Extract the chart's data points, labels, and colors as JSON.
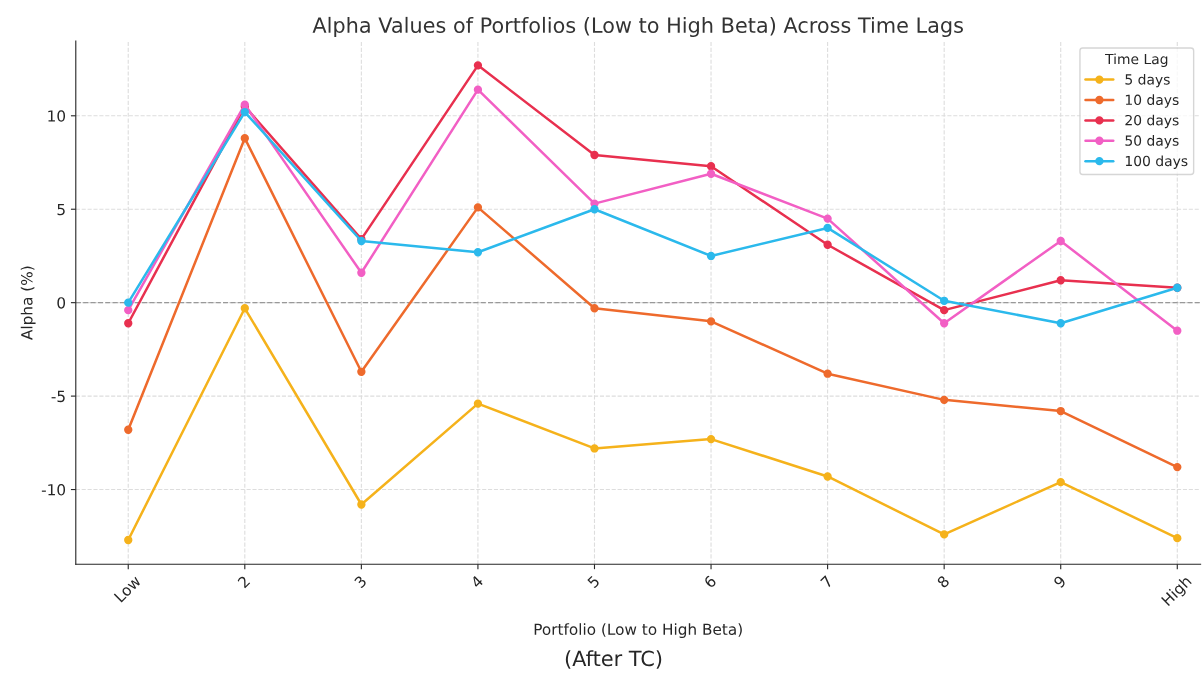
{
  "chart_data": {
    "type": "line",
    "title": "Alpha Values of Portfolios (Low to High Beta) Across Time Lags",
    "xlabel": "Portfolio (Low to High Beta)",
    "ylabel": "Alpha (%)",
    "legend_title": "Time Lag",
    "categories": [
      "Low",
      "2",
      "3",
      "4",
      "5",
      "6",
      "7",
      "8",
      "9",
      "High"
    ],
    "series": [
      {
        "name": "5 days",
        "color": "#f5b21b",
        "values": [
          -12.7,
          -0.3,
          -10.8,
          -5.4,
          -7.8,
          -7.3,
          -9.3,
          -12.4,
          -9.6,
          -12.6
        ]
      },
      {
        "name": "10 days",
        "color": "#ee6a2c",
        "values": [
          -6.8,
          8.8,
          -3.7,
          5.1,
          -0.3,
          -1.0,
          -3.8,
          -5.2,
          -5.8,
          -8.8
        ]
      },
      {
        "name": "20 days",
        "color": "#e8304f",
        "values": [
          -1.1,
          10.5,
          3.4,
          12.7,
          7.9,
          7.3,
          3.1,
          -0.4,
          1.2,
          0.8
        ]
      },
      {
        "name": "50 days",
        "color": "#f25fc4",
        "values": [
          -0.4,
          10.6,
          1.6,
          11.4,
          5.3,
          6.9,
          4.5,
          -1.1,
          3.3,
          -1.5
        ]
      },
      {
        "name": "100 days",
        "color": "#2bb9ec",
        "values": [
          0.0,
          10.2,
          3.3,
          2.7,
          5.0,
          2.5,
          4.0,
          0.1,
          -1.1,
          0.8
        ]
      }
    ],
    "ylim": [
      -14,
      14
    ],
    "yticks": [
      -10,
      -5,
      0,
      5,
      10
    ],
    "grid": true,
    "legend": "top right",
    "marker": "circle",
    "line_style": "solid",
    "ref_lines": [
      {
        "axis": "y",
        "value": 0,
        "color": "#999999",
        "line_style": "dashed"
      }
    ],
    "annotations": [
      "(After TC)"
    ]
  }
}
